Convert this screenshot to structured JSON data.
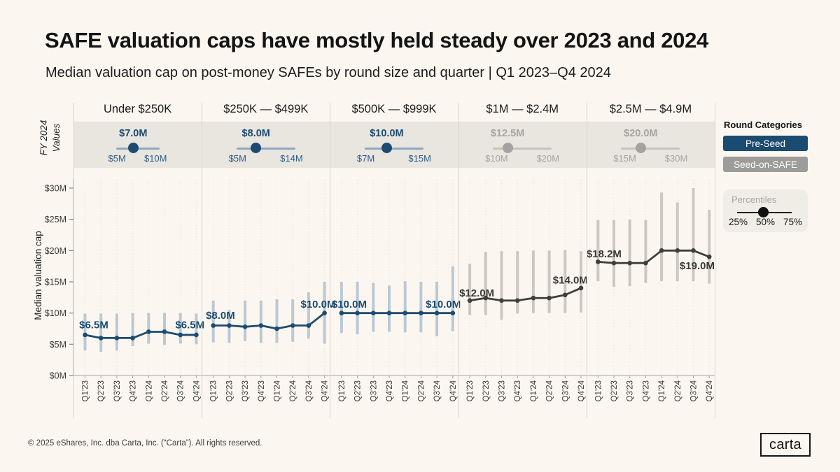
{
  "title": "SAFE valuation caps have mostly held steady over 2023 and 2024",
  "subtitle": "Median valuation cap on post-money SAFEs by round size and quarter | Q1 2023–Q4 2024",
  "labels": {
    "fy_line1": "FY 2024",
    "fy_line2": "Values"
  },
  "legend": {
    "title": "Round Categories",
    "preseed": "Pre-Seed",
    "seed": "Seed-on-SAFE",
    "percentiles": "Percentiles",
    "p25": "25%",
    "p50": "50%",
    "p75": "75%"
  },
  "footer": "© 2025 eShares, Inc. dba Carta, Inc. (“Carta”). All rights reserved.",
  "logo_text": "carta",
  "colors": {
    "preseed": "#1C4B72",
    "preseed_band": "#BBC8D6",
    "preseed_track": "#8FA9C0",
    "preseed_range_text": "#2E5F88",
    "seed_line": "#3E3E3B",
    "seed_label": "#3A3A37",
    "seed_band": "#CCC8C1",
    "seed_track": "#C7C3BC",
    "seed_text": "#A6A5A2",
    "seed_handle": "#A3A2A0",
    "axis": "#A9A6A0",
    "gridline": "#8A8578"
  },
  "chart_data": {
    "type": "line",
    "ylabel": "Median valuation cap",
    "xlabel": "",
    "ylim": [
      0,
      30
    ],
    "y_ticks": [
      0,
      5,
      10,
      15,
      20,
      25,
      30
    ],
    "y_tick_labels": [
      "$0M",
      "$5M",
      "$10M",
      "$15M",
      "$20M",
      "$25M",
      "$30M"
    ],
    "quarters": [
      "Q1'23",
      "Q2'23",
      "Q3'23",
      "Q4'23",
      "Q1'24",
      "Q2'24",
      "Q3'24",
      "Q4'24"
    ],
    "percentile_band": [
      25,
      75
    ],
    "panels": [
      {
        "label": "Under $250K",
        "category": "Pre-Seed",
        "fy2024": {
          "value_label": "$7.0M",
          "value": 7,
          "min": 5,
          "max": 10,
          "min_label": "$5M",
          "max_label": "$10M"
        },
        "median": [
          6.5,
          6.0,
          6.0,
          6.0,
          7.0,
          7.0,
          6.5,
          6.5
        ],
        "p25": [
          4.0,
          3.8,
          4.0,
          4.7,
          5.1,
          4.9,
          5.1,
          5.0
        ],
        "p75": [
          9.9,
          9.9,
          9.9,
          10.0,
          10.0,
          10.0,
          10.0,
          9.9
        ],
        "annotations": [
          {
            "text": "$6.5M",
            "q": 0.55,
            "v": 8.1
          },
          {
            "text": "$6.5M",
            "q": 6.6,
            "v": 8.1
          }
        ]
      },
      {
        "label": "$250K — $499K",
        "category": "Pre-Seed",
        "fy2024": {
          "value_label": "$8.0M",
          "value": 8,
          "min": 5,
          "max": 14,
          "min_label": "$5M",
          "max_label": "$14M"
        },
        "median": [
          8.0,
          8.0,
          7.8,
          8.0,
          7.5,
          8.0,
          8.0,
          10.0
        ],
        "p25": [
          5.3,
          5.2,
          5.5,
          5.2,
          5.2,
          5.4,
          5.9,
          5.1
        ],
        "p75": [
          12.0,
          10.5,
          12.0,
          12.0,
          12.2,
          12.2,
          13.3,
          15.0
        ],
        "annotations": [
          {
            "text": "$8.0M",
            "q": 0.45,
            "v": 9.6
          },
          {
            "text": "$10.0M",
            "q": 6.6,
            "v": 11.4
          }
        ]
      },
      {
        "label": "$500K — $999K",
        "category": "Pre-Seed",
        "fy2024": {
          "value_label": "$10.0M",
          "value": 10,
          "min": 7,
          "max": 15,
          "min_label": "$7M",
          "max_label": "$15M"
        },
        "median": [
          10.0,
          10.0,
          10.0,
          10.0,
          10.0,
          10.0,
          10.0,
          10.0
        ],
        "p25": [
          6.8,
          6.6,
          7.0,
          7.0,
          6.9,
          6.9,
          6.3,
          7.1
        ],
        "p75": [
          15.0,
          15.0,
          14.8,
          14.4,
          15.1,
          15.0,
          15.0,
          17.5
        ],
        "annotations": [
          {
            "text": "$10.0M",
            "q": 0.49,
            "v": 11.4
          },
          {
            "text": "$10.0M",
            "q": 6.4,
            "v": 11.4
          }
        ]
      },
      {
        "label": "$1M — $2.4M",
        "category": "Seed-on-SAFE",
        "fy2024": {
          "value_label": "$12.5M",
          "value": 12.5,
          "min": 10,
          "max": 20,
          "min_label": "$10M",
          "max_label": "$20M"
        },
        "median": [
          12.0,
          12.4,
          12.0,
          12.0,
          12.4,
          12.4,
          12.9,
          14.0
        ],
        "p25": [
          9.7,
          9.7,
          8.9,
          9.9,
          10.0,
          10.0,
          10.0,
          10.1
        ],
        "p75": [
          17.9,
          19.8,
          19.9,
          19.9,
          20.0,
          20.0,
          20.1,
          19.9
        ],
        "annotations": [
          {
            "text": "$12.0M",
            "q": 0.44,
            "v": 13.2
          },
          {
            "text": "$14.0M",
            "q": 6.33,
            "v": 15.3
          }
        ]
      },
      {
        "label": "$2.5M — $4.9M",
        "category": "Seed-on-SAFE",
        "fy2024": {
          "value_label": "$20.0M",
          "value": 20,
          "min": 15,
          "max": 30,
          "min_label": "$15M",
          "max_label": "$30M"
        },
        "median": [
          18.2,
          18.0,
          18.0,
          18.0,
          20.0,
          20.0,
          20.0,
          19.0
        ],
        "p25": [
          15.1,
          14.2,
          14.3,
          14.8,
          15.1,
          15.1,
          15.1,
          14.7
        ],
        "p75": [
          24.9,
          24.9,
          25.0,
          24.9,
          29.3,
          27.7,
          30.0,
          26.5
        ],
        "annotations": [
          {
            "text": "$18.2M",
            "q": 0.38,
            "v": 19.5
          },
          {
            "text": "$19.0M",
            "q": 6.24,
            "v": 17.6
          }
        ]
      }
    ]
  }
}
